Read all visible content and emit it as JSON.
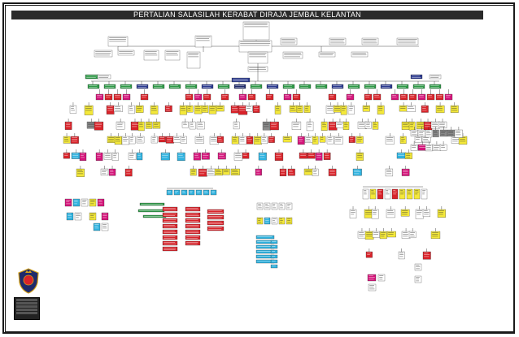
{
  "title": "PERTALIAN SALASILAH KERABAT DIRAJA JEMBAL KELANTAN",
  "colors": {
    "red": "#d8232a",
    "magenta": "#d4157a",
    "yellow": "#f4e83a",
    "green": "#2e9a47",
    "cyan": "#2fb2df",
    "blue": "#2b3a8f",
    "white": "#ffffff",
    "grey": "#8a8a8a",
    "navy": "#1f2a6b",
    "frame": "#1a1a1a"
  },
  "crest": {
    "icon": "royal-crest-icon"
  },
  "legend": {
    "rows": 7
  }
}
